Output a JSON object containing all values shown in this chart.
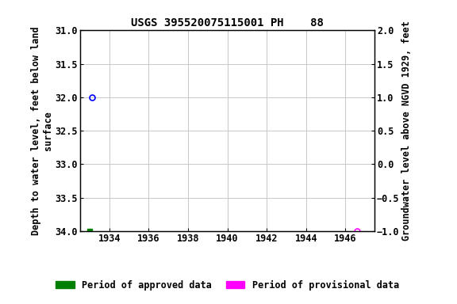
{
  "title": "USGS 395520075115001 PH    88",
  "ylabel_left": "Depth to water level, feet below land\nsurface",
  "ylabel_right": "Groundwater level above NGVD 1929, feet",
  "xlim": [
    1932.5,
    1947.5
  ],
  "ylim_left": [
    34.0,
    31.0
  ],
  "ylim_right": [
    -1.0,
    2.0
  ],
  "xticks": [
    1934,
    1936,
    1938,
    1940,
    1942,
    1944,
    1946
  ],
  "yticks_left": [
    31.0,
    31.5,
    32.0,
    32.5,
    33.0,
    33.5,
    34.0
  ],
  "yticks_right": [
    -1.0,
    -0.5,
    0.0,
    0.5,
    1.0,
    1.5,
    2.0
  ],
  "data_approved_x": [
    1933.1
  ],
  "data_approved_y": [
    32.0
  ],
  "data_provisional_x": [
    1946.6
  ],
  "data_provisional_y": [
    34.0
  ],
  "green_marker_x": 1933.0,
  "green_marker_y": 34.0,
  "approved_color": "#0000ff",
  "provisional_color": "#ff00ff",
  "approved_line_color": "#008000",
  "provisional_line_color": "#ff00ff",
  "grid_color": "#c8c8c8",
  "background_color": "#ffffff",
  "title_fontsize": 10,
  "label_fontsize": 8.5,
  "tick_fontsize": 8.5,
  "legend_fontsize": 8.5
}
